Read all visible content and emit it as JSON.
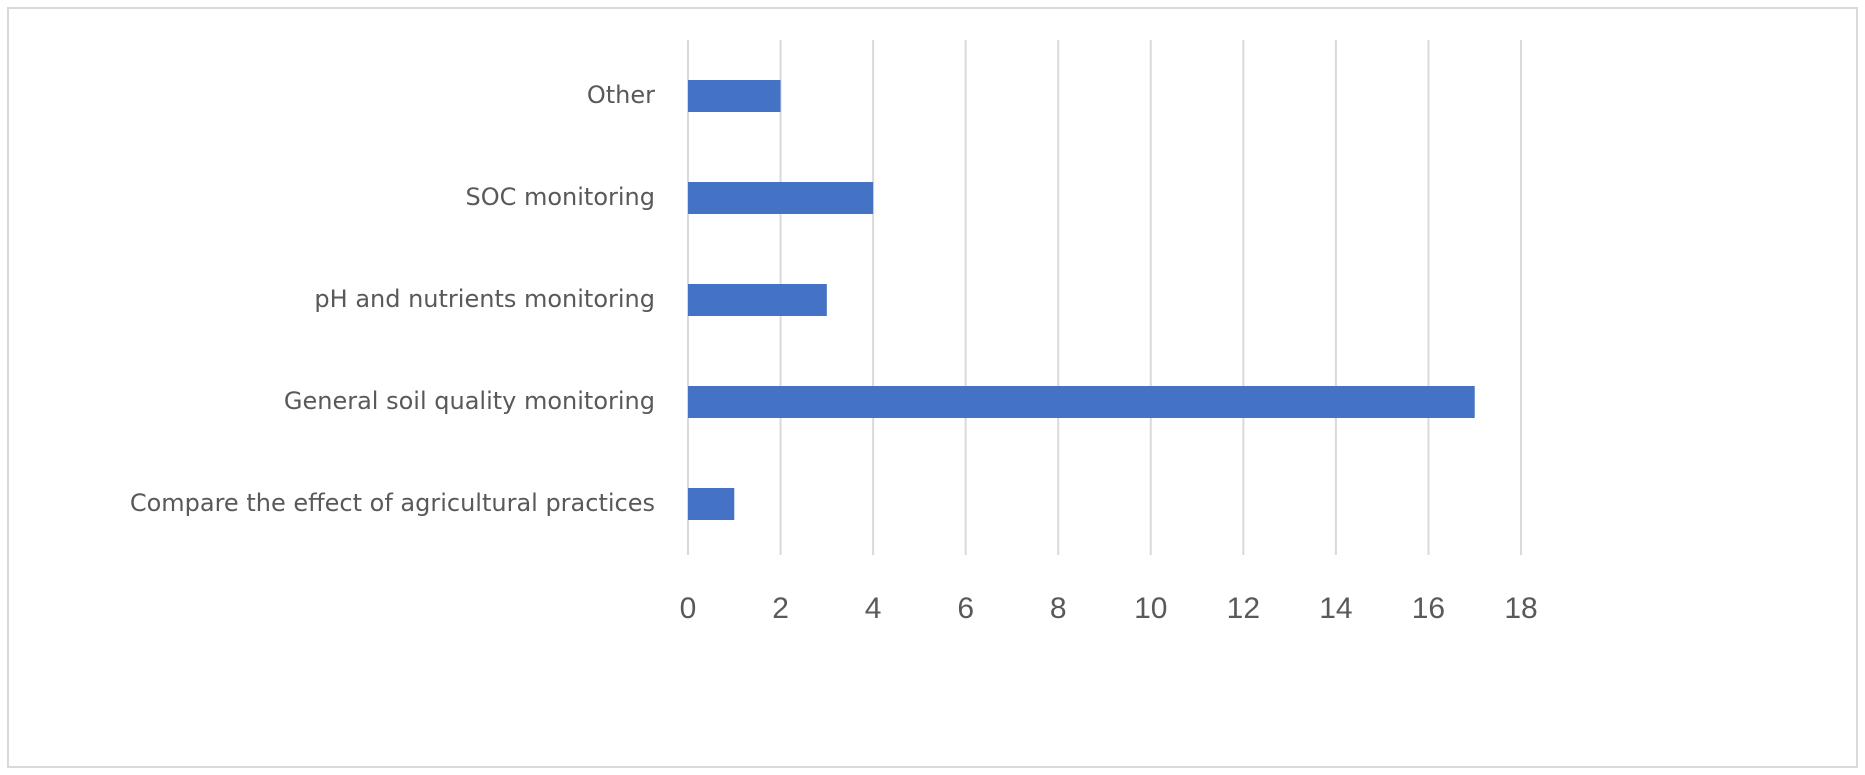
{
  "chart_data": {
    "type": "bar",
    "orientation": "horizontal",
    "categories": [
      "Other",
      "SOC monitoring",
      "pH and nutrients monitoring",
      "General soil quality monitoring",
      "Compare the effect of agricultural practices"
    ],
    "values": [
      2,
      4,
      3,
      17,
      1
    ],
    "color": "#4472c4",
    "xlim": [
      0,
      18
    ],
    "xticks": [
      0,
      2,
      4,
      6,
      8,
      10,
      12,
      14,
      16,
      18
    ],
    "grid": true
  }
}
